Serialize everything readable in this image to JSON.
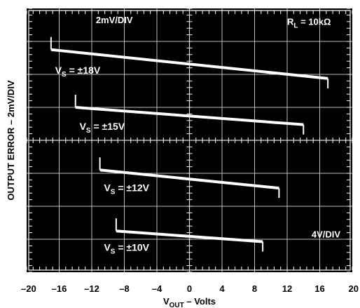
{
  "chart_data": {
    "type": "line",
    "title": "",
    "xlabel": "V_OUT – Volts",
    "xlabel_main": "V",
    "xlabel_sub": "OUT",
    "xlabel_tail": " – Volts",
    "ylabel": "OUTPUT ERROR – 2mV/DIV",
    "xlim": [
      -20,
      20
    ],
    "x_ticks": [
      -20,
      -16,
      -12,
      -8,
      -4,
      0,
      4,
      8,
      12,
      16,
      20
    ],
    "x_tick_labels": [
      "–20",
      "–16",
      "–12",
      "–8",
      "–4",
      "0",
      "4",
      "8",
      "12",
      "16",
      "20"
    ],
    "ylim": [
      -16,
      16
    ],
    "y_units": "mV",
    "grid": true,
    "annotations": {
      "scale_y": "2mV/DIV",
      "scale_x": "4V/DIV",
      "load_main": "R",
      "load_sub": "L",
      "load_tail": " = 10kΩ"
    },
    "series": [
      {
        "name": "V_S = ±18V",
        "label_main": "V",
        "label_sub": "S",
        "label_tail": " = ±18V",
        "x": [
          -17,
          17
        ],
        "y": [
          11,
          7.5
        ]
      },
      {
        "name": "V_S = ±15V",
        "label_main": "V",
        "label_sub": "S",
        "label_tail": " = ±15V",
        "x": [
          -14,
          14
        ],
        "y": [
          4,
          1.9
        ]
      },
      {
        "name": "V_S = ±12V",
        "label_main": "V",
        "label_sub": "S",
        "label_tail": " = ±12V",
        "x": [
          -11,
          11
        ],
        "y": [
          -3.6,
          -5.8
        ]
      },
      {
        "name": "V_S = ±10V",
        "label_main": "V",
        "label_sub": "S",
        "label_tail": " = ±10V",
        "x": [
          -9,
          9
        ],
        "y": [
          -11,
          -12.3
        ]
      }
    ]
  }
}
